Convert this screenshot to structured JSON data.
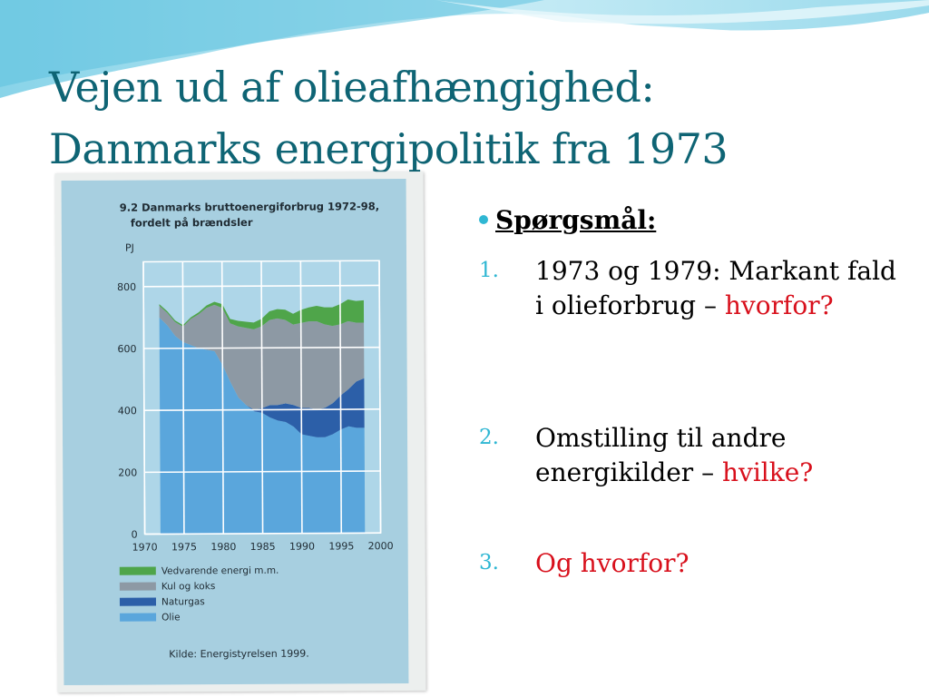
{
  "slide": {
    "title_line1": "Vejen ud af olieafhængighed:",
    "title_line2": "Danmarks energipolitik fra 1973",
    "theme_colors": {
      "title": "#0e6474",
      "bullet": "#2fb7d3",
      "emphasis": "#d8101c"
    }
  },
  "figure": {
    "title_line1": "9.2  Danmarks bruttoenergiforbrug 1972-98,",
    "title_line2": "fordelt på brændsler",
    "source": "Kilde: Energistyrelsen 1999."
  },
  "questions": {
    "heading": "Spørgsmål:",
    "items": [
      {
        "number": "1.",
        "text": "1973 og 1979: Markant fald i olieforbrug –",
        "emphasis": "hvorfor?"
      },
      {
        "number": "2.",
        "text": "Omstilling til andre energikilder –",
        "emphasis": "hvilke?"
      },
      {
        "number": "3.",
        "text": "",
        "emphasis": "Og hvorfor?"
      }
    ]
  },
  "chart_data": {
    "type": "area",
    "stacked": true,
    "title": "Danmarks bruttoenergiforbrug 1972-98, fordelt på brændsler",
    "ylabel": "PJ",
    "xlabel": "",
    "xlim": [
      1970,
      2000
    ],
    "ylim": [
      0,
      880
    ],
    "xticks": [
      "1970",
      "1975",
      "1980",
      "1985",
      "1990",
      "1995",
      "2000"
    ],
    "yticks": [
      "0",
      "200",
      "400",
      "600",
      "800"
    ],
    "grid": true,
    "legend_position": "bottom",
    "x": [
      1972,
      1973,
      1974,
      1975,
      1976,
      1977,
      1978,
      1979,
      1980,
      1981,
      1982,
      1983,
      1984,
      1985,
      1986,
      1987,
      1988,
      1989,
      1990,
      1991,
      1992,
      1993,
      1994,
      1995,
      1996,
      1997,
      1998
    ],
    "series": [
      {
        "name": "Olie",
        "color": "#5aa6dc",
        "values": [
          700,
          675,
          640,
          620,
          610,
          600,
          595,
          590,
          545,
          490,
          440,
          415,
          395,
          390,
          375,
          365,
          360,
          345,
          320,
          315,
          310,
          310,
          320,
          335,
          345,
          340,
          340
        ]
      },
      {
        "name": "Naturgas",
        "color": "#2c5fa8",
        "values": [
          0,
          0,
          0,
          0,
          0,
          0,
          0,
          0,
          0,
          0,
          0,
          0,
          5,
          15,
          40,
          50,
          60,
          70,
          85,
          90,
          90,
          95,
          100,
          110,
          120,
          150,
          160
        ]
      },
      {
        "name": "Kul og koks",
        "color": "#8d99a4",
        "values": [
          38,
          40,
          45,
          50,
          85,
          110,
          135,
          150,
          185,
          190,
          230,
          250,
          260,
          265,
          275,
          280,
          270,
          260,
          275,
          280,
          285,
          270,
          250,
          230,
          220,
          190,
          180
        ]
      },
      {
        "name": "Vedvarende energi m.m.",
        "color": "#4fa54a",
        "values": [
          5,
          5,
          5,
          5,
          5,
          6,
          8,
          10,
          12,
          14,
          18,
          20,
          22,
          24,
          28,
          30,
          33,
          35,
          42,
          45,
          50,
          55,
          60,
          65,
          70,
          70,
          72
        ]
      }
    ]
  }
}
